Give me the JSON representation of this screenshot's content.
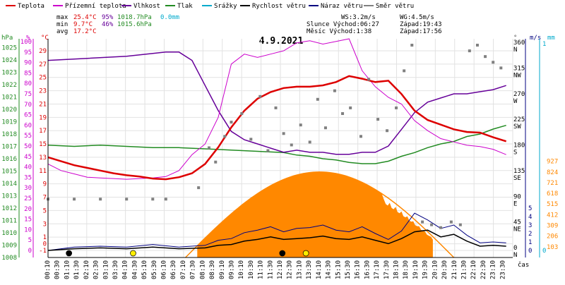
{
  "chart_data": {
    "type": "line",
    "title": "4.9.2021",
    "xlabel": "čas",
    "x_ticks": [
      "00:10",
      "00:30",
      "01:10",
      "01:30",
      "02:10",
      "02:30",
      "03:10",
      "03:30",
      "04:10",
      "04:30",
      "05:10",
      "05:30",
      "06:10",
      "06:30",
      "07:10",
      "07:30",
      "08:10",
      "08:30",
      "09:10",
      "09:30",
      "10:10",
      "10:30",
      "11:10",
      "11:30",
      "12:10",
      "12:30",
      "13:10",
      "13:30",
      "14:10",
      "14:30",
      "15:10",
      "15:30",
      "16:10",
      "16:30",
      "17:10",
      "17:30",
      "18:10",
      "18:30",
      "19:10",
      "19:30",
      "20:10",
      "20:30",
      "21:10",
      "21:30",
      "22:10",
      "22:30",
      "23:10",
      "23:30"
    ],
    "legend": [
      {
        "label": "Teplota",
        "color": "#dd0000"
      },
      {
        "label": "Přízemní teplota",
        "color": "#cc00cc"
      },
      {
        "label": "Vlhkost",
        "color": "#660099"
      },
      {
        "label": "Tlak",
        "color": "#228b22"
      },
      {
        "label": "Srážky",
        "color": "#00aacc"
      },
      {
        "label": "Rychlost větru",
        "color": "#000000"
      },
      {
        "label": "Náraz větru",
        "color": "#000080"
      },
      {
        "label": "Směr větru",
        "color": "#808080"
      }
    ],
    "stats": {
      "max_label": "max",
      "min_label": "min",
      "avg_label": "avg",
      "t_max": "25.4°C",
      "t_min": "9.7°C",
      "t_avg": "17.2°C",
      "h_max": "95%",
      "h_min": "46%",
      "p_max": "1018.7hPa",
      "p_min": "1015.6hPa",
      "r_max": "0.0mm"
    },
    "info": {
      "ws": "WS:3.2m/s",
      "wg": "WG:4.5m/s",
      "sun": "Slunce Východ:06:27",
      "sun_set": "Západ:19:43",
      "moon": "Měsíc  Východ:1:38",
      "moon_set": "Západ:17:56"
    },
    "axes": {
      "hpa_label": "hPa",
      "pct_label": "%",
      "deg_label": "°C",
      "dir_label": "°",
      "ms_label": "m/s",
      "mm_label": "mm",
      "hpa": [
        1008,
        1009,
        1010,
        1011,
        1012,
        1013,
        1014,
        1015,
        1016,
        1017,
        1018,
        1019,
        1020,
        1021,
        1022,
        1023,
        1024,
        1025
      ],
      "pct": [
        0,
        5,
        10,
        15,
        20,
        25,
        30,
        35,
        40,
        45,
        50,
        55,
        60,
        65,
        70,
        75,
        80,
        85,
        90,
        95,
        100
      ],
      "celsius": [
        -1,
        0,
        1,
        3,
        5,
        7,
        9,
        11,
        13,
        15,
        17,
        19,
        21,
        23,
        25,
        27,
        29
      ],
      "dir_deg": [
        "0",
        "45",
        "90",
        "135",
        "180",
        "225",
        "270",
        "315",
        "360"
      ],
      "dir_name": [
        "N",
        "NE",
        "E",
        "SE",
        "S",
        "SW",
        "W",
        "NW",
        "N"
      ],
      "ms": [
        "0",
        "1",
        "2",
        "3",
        "4",
        "5"
      ],
      "mm": [
        "0",
        "1"
      ],
      "radiation": [
        "103",
        "206",
        "309",
        "412",
        "515",
        "618",
        "721",
        "824",
        "927"
      ]
    },
    "ylim_temperature": [
      -1,
      30.8
    ],
    "temperature": [
      [
        0,
        13.0
      ],
      [
        1,
        12.4
      ],
      [
        2,
        11.8
      ],
      [
        3,
        11.4
      ],
      [
        4,
        11.0
      ],
      [
        5,
        10.6
      ],
      [
        6,
        10.3
      ],
      [
        7,
        10.1
      ],
      [
        8,
        9.8
      ],
      [
        9,
        9.7
      ],
      [
        10,
        10.0
      ],
      [
        11,
        10.6
      ],
      [
        12,
        12.0
      ],
      [
        13,
        14.5
      ],
      [
        14,
        17.5
      ],
      [
        15,
        20.0
      ],
      [
        16,
        21.8
      ],
      [
        17,
        22.8
      ],
      [
        18,
        23.4
      ],
      [
        19,
        23.6
      ],
      [
        20,
        23.6
      ],
      [
        21,
        23.8
      ],
      [
        22,
        24.3
      ],
      [
        23,
        25.2
      ],
      [
        24,
        24.8
      ],
      [
        25,
        24.3
      ],
      [
        26,
        24.5
      ],
      [
        27,
        22.5
      ],
      [
        28,
        20.0
      ],
      [
        29,
        18.6
      ],
      [
        30,
        17.9
      ],
      [
        31,
        17.2
      ],
      [
        32,
        16.8
      ],
      [
        33,
        16.7
      ],
      [
        34,
        16.0
      ],
      [
        35,
        15.4
      ]
    ],
    "ground_temperature": [
      [
        0,
        12.0
      ],
      [
        1,
        11.0
      ],
      [
        2,
        10.5
      ],
      [
        3,
        10.0
      ],
      [
        4,
        9.9
      ],
      [
        5,
        9.8
      ],
      [
        6,
        9.7
      ],
      [
        7,
        9.8
      ],
      [
        8,
        9.9
      ],
      [
        9,
        10.1
      ],
      [
        10,
        11.0
      ],
      [
        11,
        13.4
      ],
      [
        12,
        15.0
      ],
      [
        13,
        19.0
      ],
      [
        14,
        27.0
      ],
      [
        15,
        28.5
      ],
      [
        16,
        28.0
      ],
      [
        17,
        28.5
      ],
      [
        18,
        29.0
      ],
      [
        19,
        30.2
      ],
      [
        20,
        30.5
      ],
      [
        21,
        30.0
      ],
      [
        22,
        30.4
      ],
      [
        23,
        30.8
      ],
      [
        24,
        26.0
      ],
      [
        25,
        23.6
      ],
      [
        26,
        22.0
      ],
      [
        27,
        21.0
      ],
      [
        28,
        18.5
      ],
      [
        29,
        17.0
      ],
      [
        30,
        15.8
      ],
      [
        31,
        15.3
      ],
      [
        32,
        14.8
      ],
      [
        33,
        14.6
      ],
      [
        34,
        14.2
      ],
      [
        35,
        13.4
      ]
    ],
    "humidity": [
      [
        0,
        91
      ],
      [
        3,
        92
      ],
      [
        6,
        93
      ],
      [
        9,
        95
      ],
      [
        10,
        95
      ],
      [
        11,
        91
      ],
      [
        12,
        79
      ],
      [
        13,
        67
      ],
      [
        14,
        57
      ],
      [
        15,
        53
      ],
      [
        16,
        51
      ],
      [
        17,
        49
      ],
      [
        18,
        47
      ],
      [
        19,
        48
      ],
      [
        20,
        47
      ],
      [
        21,
        47
      ],
      [
        22,
        46
      ],
      [
        23,
        46
      ],
      [
        24,
        47
      ],
      [
        25,
        47
      ],
      [
        26,
        50
      ],
      [
        27,
        58
      ],
      [
        28,
        66
      ],
      [
        29,
        71
      ],
      [
        30,
        73
      ],
      [
        31,
        75
      ],
      [
        32,
        75
      ],
      [
        33,
        76
      ],
      [
        34,
        77
      ],
      [
        35,
        79
      ]
    ],
    "pressure": [
      [
        0,
        1017.1
      ],
      [
        2,
        1017.0
      ],
      [
        4,
        1017.1
      ],
      [
        6,
        1017.0
      ],
      [
        8,
        1016.9
      ],
      [
        10,
        1016.9
      ],
      [
        12,
        1016.8
      ],
      [
        14,
        1016.7
      ],
      [
        16,
        1016.6
      ],
      [
        18,
        1016.5
      ],
      [
        19,
        1016.3
      ],
      [
        20,
        1016.2
      ],
      [
        21,
        1016.0
      ],
      [
        22,
        1015.9
      ],
      [
        23,
        1015.7
      ],
      [
        24,
        1015.6
      ],
      [
        25,
        1015.6
      ],
      [
        26,
        1015.8
      ],
      [
        27,
        1016.2
      ],
      [
        28,
        1016.5
      ],
      [
        29,
        1016.9
      ],
      [
        30,
        1017.2
      ],
      [
        31,
        1017.4
      ],
      [
        32,
        1017.8
      ],
      [
        33,
        1018.0
      ],
      [
        34,
        1018.4
      ],
      [
        35,
        1018.7
      ]
    ],
    "wind_speed": [
      [
        0,
        0.0
      ],
      [
        2,
        0.2
      ],
      [
        4,
        0.3
      ],
      [
        6,
        0.2
      ],
      [
        8,
        0.4
      ],
      [
        10,
        0.2
      ],
      [
        12,
        0.3
      ],
      [
        13,
        0.6
      ],
      [
        14,
        0.7
      ],
      [
        15,
        1.1
      ],
      [
        16,
        1.3
      ],
      [
        17,
        1.6
      ],
      [
        18,
        1.3
      ],
      [
        19,
        1.4
      ],
      [
        20,
        1.5
      ],
      [
        21,
        1.7
      ],
      [
        22,
        1.4
      ],
      [
        23,
        1.3
      ],
      [
        24,
        1.6
      ],
      [
        25,
        1.2
      ],
      [
        26,
        0.8
      ],
      [
        27,
        1.4
      ],
      [
        28,
        2.2
      ],
      [
        29,
        2.4
      ],
      [
        30,
        1.6
      ],
      [
        31,
        1.9
      ],
      [
        32,
        1.1
      ],
      [
        33,
        0.5
      ],
      [
        34,
        0.6
      ],
      [
        35,
        0.5
      ]
    ],
    "wind_gust": [
      [
        0,
        0.0
      ],
      [
        2,
        0.4
      ],
      [
        4,
        0.5
      ],
      [
        6,
        0.4
      ],
      [
        8,
        0.7
      ],
      [
        10,
        0.4
      ],
      [
        12,
        0.6
      ],
      [
        13,
        1.2
      ],
      [
        14,
        1.4
      ],
      [
        15,
        2.1
      ],
      [
        16,
        2.4
      ],
      [
        17,
        2.8
      ],
      [
        18,
        2.2
      ],
      [
        19,
        2.6
      ],
      [
        20,
        2.7
      ],
      [
        21,
        3.0
      ],
      [
        22,
        2.4
      ],
      [
        23,
        2.2
      ],
      [
        24,
        2.8
      ],
      [
        25,
        2.0
      ],
      [
        26,
        1.3
      ],
      [
        27,
        2.3
      ],
      [
        28,
        4.4
      ],
      [
        29,
        3.6
      ],
      [
        30,
        2.6
      ],
      [
        31,
        3.0
      ],
      [
        32,
        1.8
      ],
      [
        33,
        0.9
      ],
      [
        34,
        1.0
      ],
      [
        35,
        0.9
      ]
    ],
    "wind_direction": [
      [
        0,
        90
      ],
      [
        2,
        90
      ],
      [
        4,
        90
      ],
      [
        6,
        90
      ],
      [
        8,
        90
      ],
      [
        9,
        90
      ],
      [
        11.5,
        110
      ],
      [
        12.3,
        180
      ],
      [
        12.8,
        155
      ],
      [
        13.5,
        200
      ],
      [
        14,
        225
      ],
      [
        14.8,
        240
      ],
      [
        15.5,
        195
      ],
      [
        16.2,
        270
      ],
      [
        16.8,
        175
      ],
      [
        17.4,
        250
      ],
      [
        18,
        205
      ],
      [
        18.6,
        185
      ],
      [
        19.3,
        220
      ],
      [
        20,
        190
      ],
      [
        20.6,
        265
      ],
      [
        21.2,
        215
      ],
      [
        21.9,
        280
      ],
      [
        22.5,
        240
      ],
      [
        23.1,
        250
      ],
      [
        23.9,
        200
      ],
      [
        24.5,
        300
      ],
      [
        25.2,
        230
      ],
      [
        25.9,
        210
      ],
      [
        26.6,
        250
      ],
      [
        27.2,
        315
      ],
      [
        27.8,
        360
      ],
      [
        28.6,
        50
      ],
      [
        29.3,
        45
      ],
      [
        30,
        40
      ],
      [
        30.8,
        50
      ],
      [
        31.5,
        45
      ],
      [
        32.2,
        350
      ],
      [
        32.8,
        360
      ],
      [
        33.4,
        340
      ],
      [
        34,
        330
      ],
      [
        34.6,
        320
      ]
    ],
    "radiation_peak": 824,
    "rain": [],
    "markers": [
      {
        "t": 1.6,
        "type": "moonrise",
        "color": "#000000"
      },
      {
        "t": 6.5,
        "type": "sunrise",
        "color": "#ffee00"
      },
      {
        "t": 17.9,
        "type": "moonset",
        "color": "#000000"
      },
      {
        "t": 19.7,
        "type": "sunset",
        "color": "#ffee00"
      }
    ],
    "colors": {
      "temperature": "#dd0000",
      "ground": "#cc00cc",
      "humidity": "#660099",
      "pressure": "#228b22",
      "rain": "#00aacc",
      "wind": "#000000",
      "gust": "#000080",
      "direction": "#808080",
      "radiation": "#ff8800",
      "hpa_axis": "#228b22",
      "pct_axis": "#cc00cc",
      "deg_axis": "#dd0000",
      "rad_axis": "#ff8800"
    }
  }
}
